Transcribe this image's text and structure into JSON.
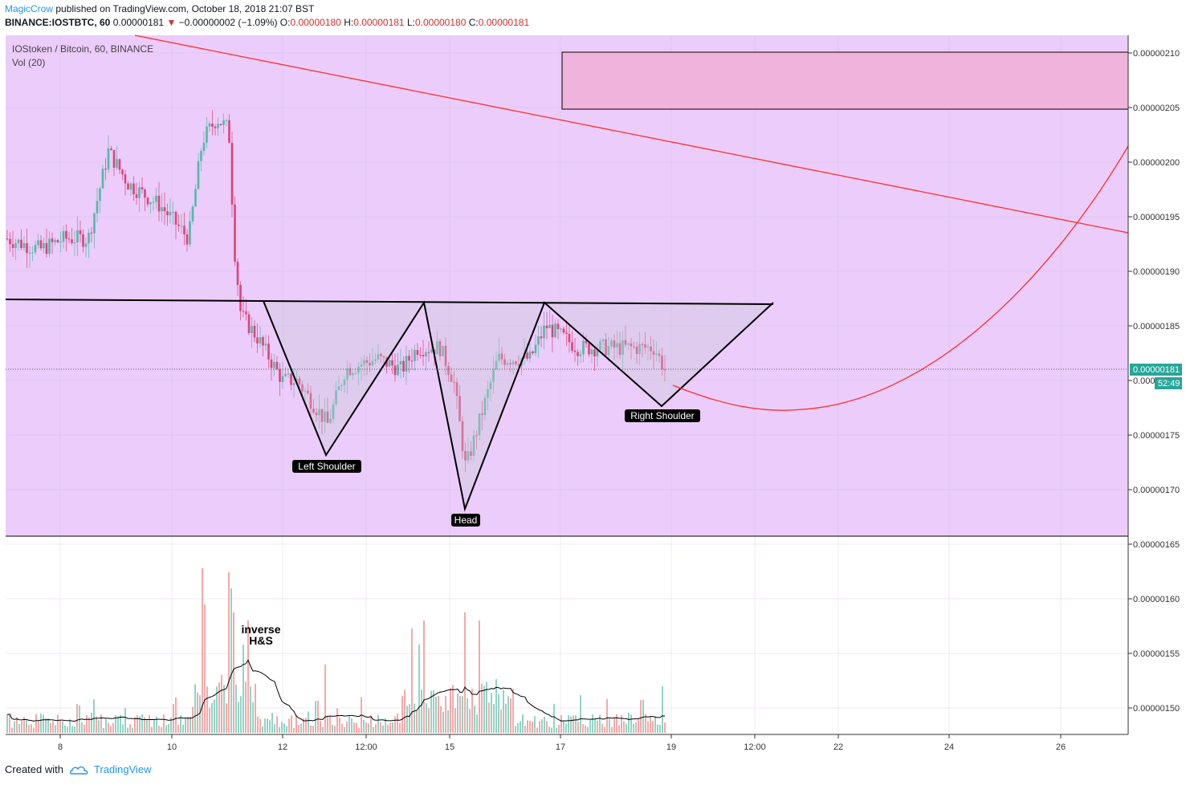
{
  "header": {
    "author": "MagicCrow",
    "published": "published on TradingView.com, October 18, 2018 21:07 BST",
    "symbol": "BINANCE:IOSTBTC, 60",
    "last": "0.00000181",
    "change": "−0.00000002 (−1.09%)",
    "o_label": "O:",
    "o": "0.00000180",
    "h_label": "H:",
    "h": "0.00000181",
    "l_label": "L:",
    "l": "0.00000180",
    "c_label": "C:",
    "c": "0.00000181",
    "down_arrow_icon": "triangle-down-icon"
  },
  "legend": {
    "title": "IOStoken / Bitcoin, 60, BINANCE",
    "volume": "Vol (20)"
  },
  "price_badge": {
    "price": "0.00000181",
    "countdown": "52:49"
  },
  "annotations": {
    "left_shoulder": "Left Shoulder",
    "head": "Head",
    "right_shoulder": "Right Shoulder",
    "inverse_hs": "inverse\nH&S"
  },
  "footer": {
    "created_with": "Created with",
    "brand": "TradingView",
    "logo_icon": "tradingview-cloud-icon"
  },
  "colors": {
    "background_zone": "#ebccfa",
    "resistance_box": "#efb3dc",
    "up_candle": "#53b9a5",
    "down_candle": "#e0427a",
    "trendline": "#ff2d2d",
    "pattern_line": "#000000",
    "price_badge": "#26a69a"
  },
  "chart_data": {
    "type": "candlestick",
    "title": "IOStoken / Bitcoin, 60, BINANCE",
    "y_ticks": [
      "0.00000210",
      "0.00000205",
      "0.00000200",
      "0.00000195",
      "0.00000190",
      "0.00000185",
      "0.00000180",
      "0.00000175",
      "0.00000170",
      "0.00000165",
      "0.00000160",
      "0.00000155",
      "0.00000150"
    ],
    "x_ticks": [
      "8",
      "10",
      "12",
      "12:00",
      "15",
      "17",
      "19",
      "12:00",
      "22",
      "24",
      "26"
    ],
    "price_ranges": [
      {
        "date": "Oct 7-8",
        "low": 1.91e-06,
        "high": 1.95e-06
      },
      {
        "date": "Oct 9",
        "low": 1.92e-06,
        "high": 2.02e-06
      },
      {
        "date": "Oct 10",
        "low": 1.92e-06,
        "high": 2.06e-06
      },
      {
        "date": "Oct 11",
        "low": 1.79e-06,
        "high": 2.1e-06
      },
      {
        "date": "Oct 12",
        "low": 1.73e-06,
        "high": 1.83e-06
      },
      {
        "date": "Oct 13-14",
        "low": 1.78e-06,
        "high": 1.85e-06
      },
      {
        "date": "Oct 15",
        "low": 1.7e-06,
        "high": 1.84e-06
      },
      {
        "date": "Oct 16-17",
        "low": 1.79e-06,
        "high": 1.86e-06
      },
      {
        "date": "Oct 18",
        "low": 1.8e-06,
        "high": 1.85e-06
      }
    ],
    "last_price": 1.81e-06,
    "pattern": {
      "name": "inverse H&S",
      "neckline": 1.87e-06,
      "left_shoulder": 1.73e-06,
      "head": 1.68e-06,
      "right_shoulder": 1.78e-06
    },
    "resistance_zone": {
      "low": 2.05e-06,
      "high": 2.1e-06
    },
    "volume_series": "Vol (20)"
  }
}
